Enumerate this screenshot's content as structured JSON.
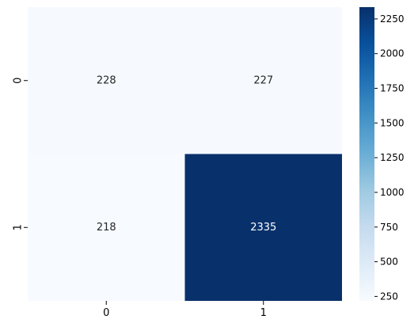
{
  "chart_data": {
    "type": "heatmap",
    "title": "",
    "xlabel": "",
    "ylabel": "",
    "x_categories": [
      "0",
      "1"
    ],
    "y_categories": [
      "0",
      "1"
    ],
    "values": [
      [
        228,
        227
      ],
      [
        218,
        2335
      ]
    ],
    "annotations": [
      [
        "228",
        "227"
      ],
      [
        "218",
        "2335"
      ]
    ],
    "colormap": "Blues",
    "colorbar": {
      "min": 218,
      "max": 2335,
      "ticks": [
        250,
        500,
        750,
        1000,
        1250,
        1500,
        1750,
        2000,
        2250
      ]
    },
    "colors": {
      "low": "#f7fbff",
      "high": "#08306b",
      "annotation_on_light": "#262626",
      "annotation_on_dark": "#ffffff"
    }
  }
}
